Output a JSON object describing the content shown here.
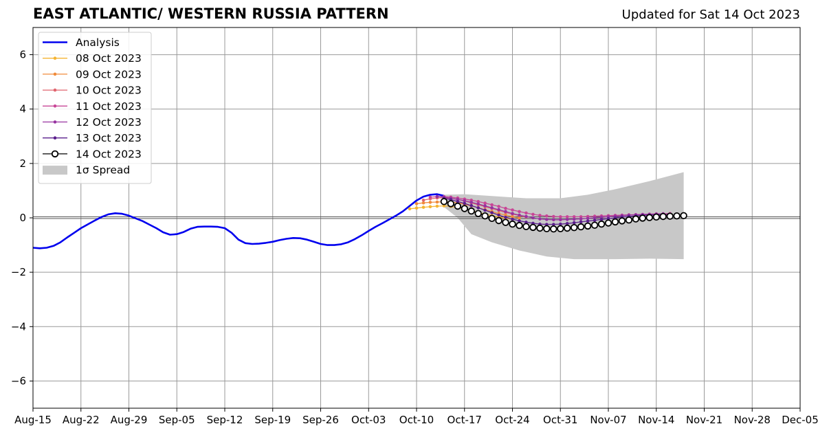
{
  "header": {
    "title": "EAST ATLANTIC/ WESTERN RUSSIA PATTERN",
    "updated": "Updated for Sat 14 Oct 2023"
  },
  "chart_data": {
    "type": "line",
    "title": "EAST ATLANTIC/ WESTERN RUSSIA PATTERN",
    "subtitle": "Updated for Sat 14 Oct 2023",
    "xlim": [
      "2023-08-15",
      "2023-12-05"
    ],
    "ylim": [
      -7,
      7
    ],
    "x_tick_labels": [
      "Aug-15",
      "Aug-22",
      "Aug-29",
      "Sep-05",
      "Sep-12",
      "Sep-19",
      "Sep-26",
      "Oct-03",
      "Oct-10",
      "Oct-17",
      "Oct-24",
      "Oct-31",
      "Nov-07",
      "Nov-14",
      "Nov-21",
      "Nov-28",
      "Dec-05"
    ],
    "y_ticks": [
      -6,
      -4,
      -2,
      0,
      2,
      4,
      6
    ],
    "y_tick_labels": [
      "−6",
      "−4",
      "−2",
      "0",
      "2",
      "4",
      "6"
    ],
    "grid": true,
    "legend_position": "top-left",
    "analysis": {
      "name": "Analysis",
      "color": "#0000ee",
      "points": [
        [
          "2023-08-15",
          -1.1
        ],
        [
          "2023-08-16",
          -1.12
        ],
        [
          "2023-08-17",
          -1.1
        ],
        [
          "2023-08-18",
          -1.03
        ],
        [
          "2023-08-19",
          -0.9
        ],
        [
          "2023-08-20",
          -0.72
        ],
        [
          "2023-08-21",
          -0.55
        ],
        [
          "2023-08-22",
          -0.38
        ],
        [
          "2023-08-23",
          -0.24
        ],
        [
          "2023-08-24",
          -0.1
        ],
        [
          "2023-08-25",
          0.03
        ],
        [
          "2023-08-26",
          0.13
        ],
        [
          "2023-08-27",
          0.17
        ],
        [
          "2023-08-28",
          0.15
        ],
        [
          "2023-08-29",
          0.08
        ],
        [
          "2023-08-30",
          -0.02
        ],
        [
          "2023-08-31",
          -0.12
        ],
        [
          "2023-09-01",
          -0.25
        ],
        [
          "2023-09-02",
          -0.38
        ],
        [
          "2023-09-03",
          -0.53
        ],
        [
          "2023-09-04",
          -0.62
        ],
        [
          "2023-09-05",
          -0.6
        ],
        [
          "2023-09-06",
          -0.52
        ],
        [
          "2023-09-07",
          -0.4
        ],
        [
          "2023-09-08",
          -0.33
        ],
        [
          "2023-09-09",
          -0.32
        ],
        [
          "2023-09-10",
          -0.32
        ],
        [
          "2023-09-11",
          -0.33
        ],
        [
          "2023-09-12",
          -0.38
        ],
        [
          "2023-09-13",
          -0.55
        ],
        [
          "2023-09-14",
          -0.8
        ],
        [
          "2023-09-15",
          -0.93
        ],
        [
          "2023-09-16",
          -0.96
        ],
        [
          "2023-09-17",
          -0.95
        ],
        [
          "2023-09-18",
          -0.92
        ],
        [
          "2023-09-19",
          -0.88
        ],
        [
          "2023-09-20",
          -0.82
        ],
        [
          "2023-09-21",
          -0.77
        ],
        [
          "2023-09-22",
          -0.74
        ],
        [
          "2023-09-23",
          -0.75
        ],
        [
          "2023-09-24",
          -0.8
        ],
        [
          "2023-09-25",
          -0.88
        ],
        [
          "2023-09-26",
          -0.96
        ],
        [
          "2023-09-27",
          -1.0
        ],
        [
          "2023-09-28",
          -1.0
        ],
        [
          "2023-09-29",
          -0.97
        ],
        [
          "2023-09-30",
          -0.9
        ],
        [
          "2023-10-01",
          -0.78
        ],
        [
          "2023-10-02",
          -0.64
        ],
        [
          "2023-10-03",
          -0.48
        ],
        [
          "2023-10-04",
          -0.33
        ],
        [
          "2023-10-05",
          -0.2
        ],
        [
          "2023-10-06",
          -0.06
        ],
        [
          "2023-10-07",
          0.08
        ],
        [
          "2023-10-08",
          0.24
        ],
        [
          "2023-10-09",
          0.44
        ],
        [
          "2023-10-10",
          0.64
        ],
        [
          "2023-10-11",
          0.78
        ],
        [
          "2023-10-12",
          0.85
        ],
        [
          "2023-10-13",
          0.87
        ],
        [
          "2023-10-14",
          0.81
        ]
      ]
    },
    "spread": {
      "name": "1σ Spread",
      "color": "#c8c8c8",
      "upper": [
        [
          "2023-10-14",
          0.85
        ],
        [
          "2023-10-17",
          0.87
        ],
        [
          "2023-10-21",
          0.8
        ],
        [
          "2023-10-26",
          0.72
        ],
        [
          "2023-10-31",
          0.72
        ],
        [
          "2023-11-04",
          0.85
        ],
        [
          "2023-11-08",
          1.05
        ],
        [
          "2023-11-13",
          1.35
        ],
        [
          "2023-11-18",
          1.68
        ]
      ],
      "lower": [
        [
          "2023-10-18",
          -0.6
        ],
        [
          "2023-10-21",
          -0.9
        ],
        [
          "2023-10-25",
          -1.2
        ],
        [
          "2023-10-29",
          -1.42
        ],
        [
          "2023-11-02",
          -1.52
        ],
        [
          "2023-11-08",
          -1.52
        ],
        [
          "2023-11-13",
          -1.5
        ],
        [
          "2023-11-18",
          -1.52
        ]
      ],
      "lower_start": [
        [
          "2023-10-14",
          0.4
        ],
        [
          "2023-10-16",
          0.0
        ],
        [
          "2023-10-18",
          -0.6
        ]
      ]
    },
    "series": [
      {
        "name": "08 Oct 2023",
        "color": "#f5b432",
        "points": [
          [
            "2023-10-09",
            0.33
          ],
          [
            "2023-10-10",
            0.36
          ],
          [
            "2023-10-11",
            0.39
          ],
          [
            "2023-10-12",
            0.41
          ],
          [
            "2023-10-13",
            0.43
          ],
          [
            "2023-10-14",
            0.44
          ],
          [
            "2023-10-15",
            0.42
          ],
          [
            "2023-10-16",
            0.38
          ],
          [
            "2023-10-17",
            0.32
          ],
          [
            "2023-10-18",
            0.26
          ],
          [
            "2023-10-19",
            0.2
          ],
          [
            "2023-10-20",
            0.14
          ],
          [
            "2023-10-21",
            0.08
          ],
          [
            "2023-10-22",
            0.03
          ],
          [
            "2023-10-23",
            -0.02
          ],
          [
            "2023-10-24",
            -0.05
          ]
        ]
      },
      {
        "name": "09 Oct 2023",
        "color": "#f08a3a",
        "points": [
          [
            "2023-10-10",
            0.52
          ],
          [
            "2023-10-11",
            0.55
          ],
          [
            "2023-10-12",
            0.57
          ],
          [
            "2023-10-13",
            0.58
          ],
          [
            "2023-10-14",
            0.59
          ],
          [
            "2023-10-15",
            0.58
          ],
          [
            "2023-10-16",
            0.55
          ],
          [
            "2023-10-17",
            0.5
          ],
          [
            "2023-10-18",
            0.44
          ],
          [
            "2023-10-19",
            0.37
          ],
          [
            "2023-10-20",
            0.3
          ],
          [
            "2023-10-21",
            0.23
          ],
          [
            "2023-10-22",
            0.16
          ],
          [
            "2023-10-23",
            0.1
          ],
          [
            "2023-10-24",
            0.04
          ],
          [
            "2023-10-25",
            -0.01
          ]
        ]
      },
      {
        "name": "10 Oct 2023",
        "color": "#e0646e",
        "points": [
          [
            "2023-10-11",
            0.65
          ],
          [
            "2023-10-12",
            0.7
          ],
          [
            "2023-10-13",
            0.73
          ],
          [
            "2023-10-14",
            0.74
          ],
          [
            "2023-10-15",
            0.72
          ],
          [
            "2023-10-16",
            0.68
          ],
          [
            "2023-10-17",
            0.62
          ],
          [
            "2023-10-18",
            0.55
          ],
          [
            "2023-10-19",
            0.48
          ],
          [
            "2023-10-20",
            0.41
          ],
          [
            "2023-10-21",
            0.34
          ],
          [
            "2023-10-22",
            0.27
          ],
          [
            "2023-10-23",
            0.2
          ],
          [
            "2023-10-24",
            0.14
          ],
          [
            "2023-10-25",
            0.08
          ],
          [
            "2023-10-26",
            0.03
          ]
        ]
      },
      {
        "name": "11 Oct 2023",
        "color": "#c84696",
        "points": [
          [
            "2023-10-12",
            0.76
          ],
          [
            "2023-10-13",
            0.78
          ],
          [
            "2023-10-14",
            0.78
          ],
          [
            "2023-10-15",
            0.76
          ],
          [
            "2023-10-16",
            0.73
          ],
          [
            "2023-10-17",
            0.69
          ],
          [
            "2023-10-18",
            0.65
          ],
          [
            "2023-10-19",
            0.6
          ],
          [
            "2023-10-20",
            0.54
          ],
          [
            "2023-10-21",
            0.48
          ],
          [
            "2023-10-22",
            0.42
          ],
          [
            "2023-10-23",
            0.35
          ],
          [
            "2023-10-24",
            0.29
          ],
          [
            "2023-10-25",
            0.23
          ],
          [
            "2023-10-26",
            0.18
          ],
          [
            "2023-10-27",
            0.13
          ],
          [
            "2023-10-28",
            0.09
          ],
          [
            "2023-10-29",
            0.07
          ],
          [
            "2023-10-30",
            0.05
          ],
          [
            "2023-10-31",
            0.04
          ],
          [
            "2023-11-01",
            0.04
          ],
          [
            "2023-11-02",
            0.04
          ],
          [
            "2023-11-03",
            0.04
          ],
          [
            "2023-11-04",
            0.05
          ],
          [
            "2023-11-05",
            0.06
          ],
          [
            "2023-11-06",
            0.07
          ],
          [
            "2023-11-07",
            0.08
          ],
          [
            "2023-11-08",
            0.09
          ],
          [
            "2023-11-09",
            0.1
          ],
          [
            "2023-11-10",
            0.11
          ],
          [
            "2023-11-11",
            0.12
          ],
          [
            "2023-11-12",
            0.13
          ],
          [
            "2023-11-13",
            0.14
          ],
          [
            "2023-11-14",
            0.15
          ],
          [
            "2023-11-15",
            0.15
          ],
          [
            "2023-11-16",
            0.16
          ]
        ]
      },
      {
        "name": "12 Oct 2023",
        "color": "#9632a0",
        "points": [
          [
            "2023-10-13",
            0.78
          ],
          [
            "2023-10-14",
            0.76
          ],
          [
            "2023-10-15",
            0.72
          ],
          [
            "2023-10-16",
            0.68
          ],
          [
            "2023-10-17",
            0.63
          ],
          [
            "2023-10-18",
            0.57
          ],
          [
            "2023-10-19",
            0.51
          ],
          [
            "2023-10-20",
            0.44
          ],
          [
            "2023-10-21",
            0.37
          ],
          [
            "2023-10-22",
            0.3
          ],
          [
            "2023-10-23",
            0.23
          ],
          [
            "2023-10-24",
            0.16
          ],
          [
            "2023-10-25",
            0.1
          ],
          [
            "2023-10-26",
            0.05
          ],
          [
            "2023-10-27",
            0.0
          ],
          [
            "2023-10-28",
            -0.04
          ],
          [
            "2023-10-29",
            -0.06
          ],
          [
            "2023-10-30",
            -0.07
          ],
          [
            "2023-10-31",
            -0.07
          ],
          [
            "2023-11-01",
            -0.06
          ],
          [
            "2023-11-02",
            -0.05
          ],
          [
            "2023-11-03",
            -0.04
          ],
          [
            "2023-11-04",
            -0.02
          ],
          [
            "2023-11-05",
            0.0
          ],
          [
            "2023-11-06",
            0.02
          ],
          [
            "2023-11-07",
            0.04
          ],
          [
            "2023-11-08",
            0.06
          ],
          [
            "2023-11-09",
            0.08
          ],
          [
            "2023-11-10",
            0.1
          ],
          [
            "2023-11-11",
            0.11
          ],
          [
            "2023-11-12",
            0.12
          ],
          [
            "2023-11-13",
            0.13
          ],
          [
            "2023-11-14",
            0.14
          ],
          [
            "2023-11-15",
            0.15
          ]
        ]
      },
      {
        "name": "13 Oct 2023",
        "color": "#5a1e8c",
        "points": [
          [
            "2023-10-14",
            0.72
          ],
          [
            "2023-10-15",
            0.67
          ],
          [
            "2023-10-16",
            0.6
          ],
          [
            "2023-10-17",
            0.53
          ],
          [
            "2023-10-18",
            0.45
          ],
          [
            "2023-10-19",
            0.37
          ],
          [
            "2023-10-20",
            0.28
          ],
          [
            "2023-10-21",
            0.19
          ],
          [
            "2023-10-22",
            0.1
          ],
          [
            "2023-10-23",
            0.02
          ],
          [
            "2023-10-24",
            -0.05
          ],
          [
            "2023-10-25",
            -0.11
          ],
          [
            "2023-10-26",
            -0.16
          ],
          [
            "2023-10-27",
            -0.2
          ],
          [
            "2023-10-28",
            -0.23
          ],
          [
            "2023-10-29",
            -0.24
          ],
          [
            "2023-10-30",
            -0.24
          ],
          [
            "2023-10-31",
            -0.23
          ],
          [
            "2023-11-01",
            -0.21
          ],
          [
            "2023-11-02",
            -0.18
          ],
          [
            "2023-11-03",
            -0.15
          ],
          [
            "2023-11-04",
            -0.12
          ],
          [
            "2023-11-05",
            -0.09
          ],
          [
            "2023-11-06",
            -0.06
          ],
          [
            "2023-11-07",
            -0.03
          ],
          [
            "2023-11-08",
            0.0
          ],
          [
            "2023-11-09",
            0.03
          ],
          [
            "2023-11-10",
            0.05
          ],
          [
            "2023-11-11",
            0.07
          ],
          [
            "2023-11-12",
            0.09
          ],
          [
            "2023-11-13",
            0.1
          ],
          [
            "2023-11-14",
            0.11
          ],
          [
            "2023-11-15",
            0.12
          ],
          [
            "2023-11-16",
            0.13
          ]
        ]
      },
      {
        "name": "14 Oct 2023",
        "color": "#000000",
        "marker_fill": "#ffffff",
        "points": [
          [
            "2023-10-14",
            0.6
          ],
          [
            "2023-10-15",
            0.52
          ],
          [
            "2023-10-16",
            0.43
          ],
          [
            "2023-10-17",
            0.34
          ],
          [
            "2023-10-18",
            0.25
          ],
          [
            "2023-10-19",
            0.16
          ],
          [
            "2023-10-20",
            0.07
          ],
          [
            "2023-10-21",
            -0.02
          ],
          [
            "2023-10-22",
            -0.1
          ],
          [
            "2023-10-23",
            -0.17
          ],
          [
            "2023-10-24",
            -0.23
          ],
          [
            "2023-10-25",
            -0.28
          ],
          [
            "2023-10-26",
            -0.32
          ],
          [
            "2023-10-27",
            -0.35
          ],
          [
            "2023-10-28",
            -0.38
          ],
          [
            "2023-10-29",
            -0.4
          ],
          [
            "2023-10-30",
            -0.41
          ],
          [
            "2023-10-31",
            -0.4
          ],
          [
            "2023-11-01",
            -0.38
          ],
          [
            "2023-11-02",
            -0.36
          ],
          [
            "2023-11-03",
            -0.33
          ],
          [
            "2023-11-04",
            -0.3
          ],
          [
            "2023-11-05",
            -0.27
          ],
          [
            "2023-11-06",
            -0.23
          ],
          [
            "2023-11-07",
            -0.19
          ],
          [
            "2023-11-08",
            -0.15
          ],
          [
            "2023-11-09",
            -0.11
          ],
          [
            "2023-11-10",
            -0.08
          ],
          [
            "2023-11-11",
            -0.04
          ],
          [
            "2023-11-12",
            -0.01
          ],
          [
            "2023-11-13",
            0.01
          ],
          [
            "2023-11-14",
            0.03
          ],
          [
            "2023-11-15",
            0.05
          ],
          [
            "2023-11-16",
            0.06
          ],
          [
            "2023-11-17",
            0.07
          ],
          [
            "2023-11-18",
            0.08
          ]
        ]
      }
    ]
  }
}
